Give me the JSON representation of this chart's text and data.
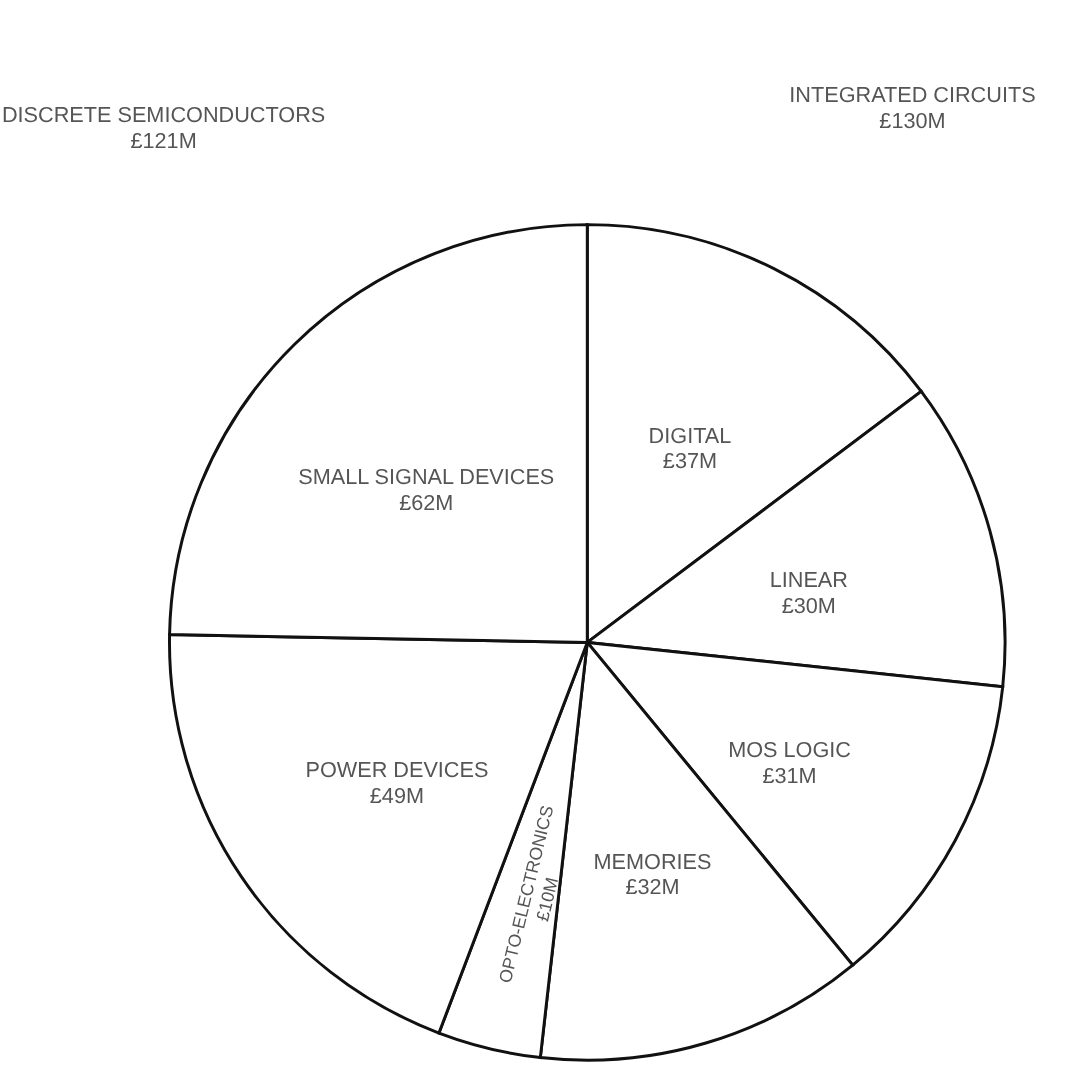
{
  "chart_data": {
    "type": "pie",
    "categories": [
      "DIGITAL",
      "LINEAR",
      "MOS LOGIC",
      "MEMORIES",
      "OPTO-ELECTRONICS",
      "POWER DEVICES",
      "SMALL SIGNAL DEVICES"
    ],
    "values": [
      37,
      30,
      31,
      32,
      10,
      49,
      62
    ],
    "value_labels": [
      "£37M",
      "£30M",
      "£31M",
      "£32M",
      "£10M",
      "£49M",
      "£62M"
    ],
    "colors": [
      "#ffffff",
      "#ffffff",
      "#ffffff",
      "#ffffff",
      "#ffffff",
      "#ffffff",
      "#ffffff"
    ],
    "annotations": [
      "DISCRETE SEMICONDUCTORS\n£121M",
      "INTEGRATED CIRCUITS\n£130M"
    ]
  }
}
